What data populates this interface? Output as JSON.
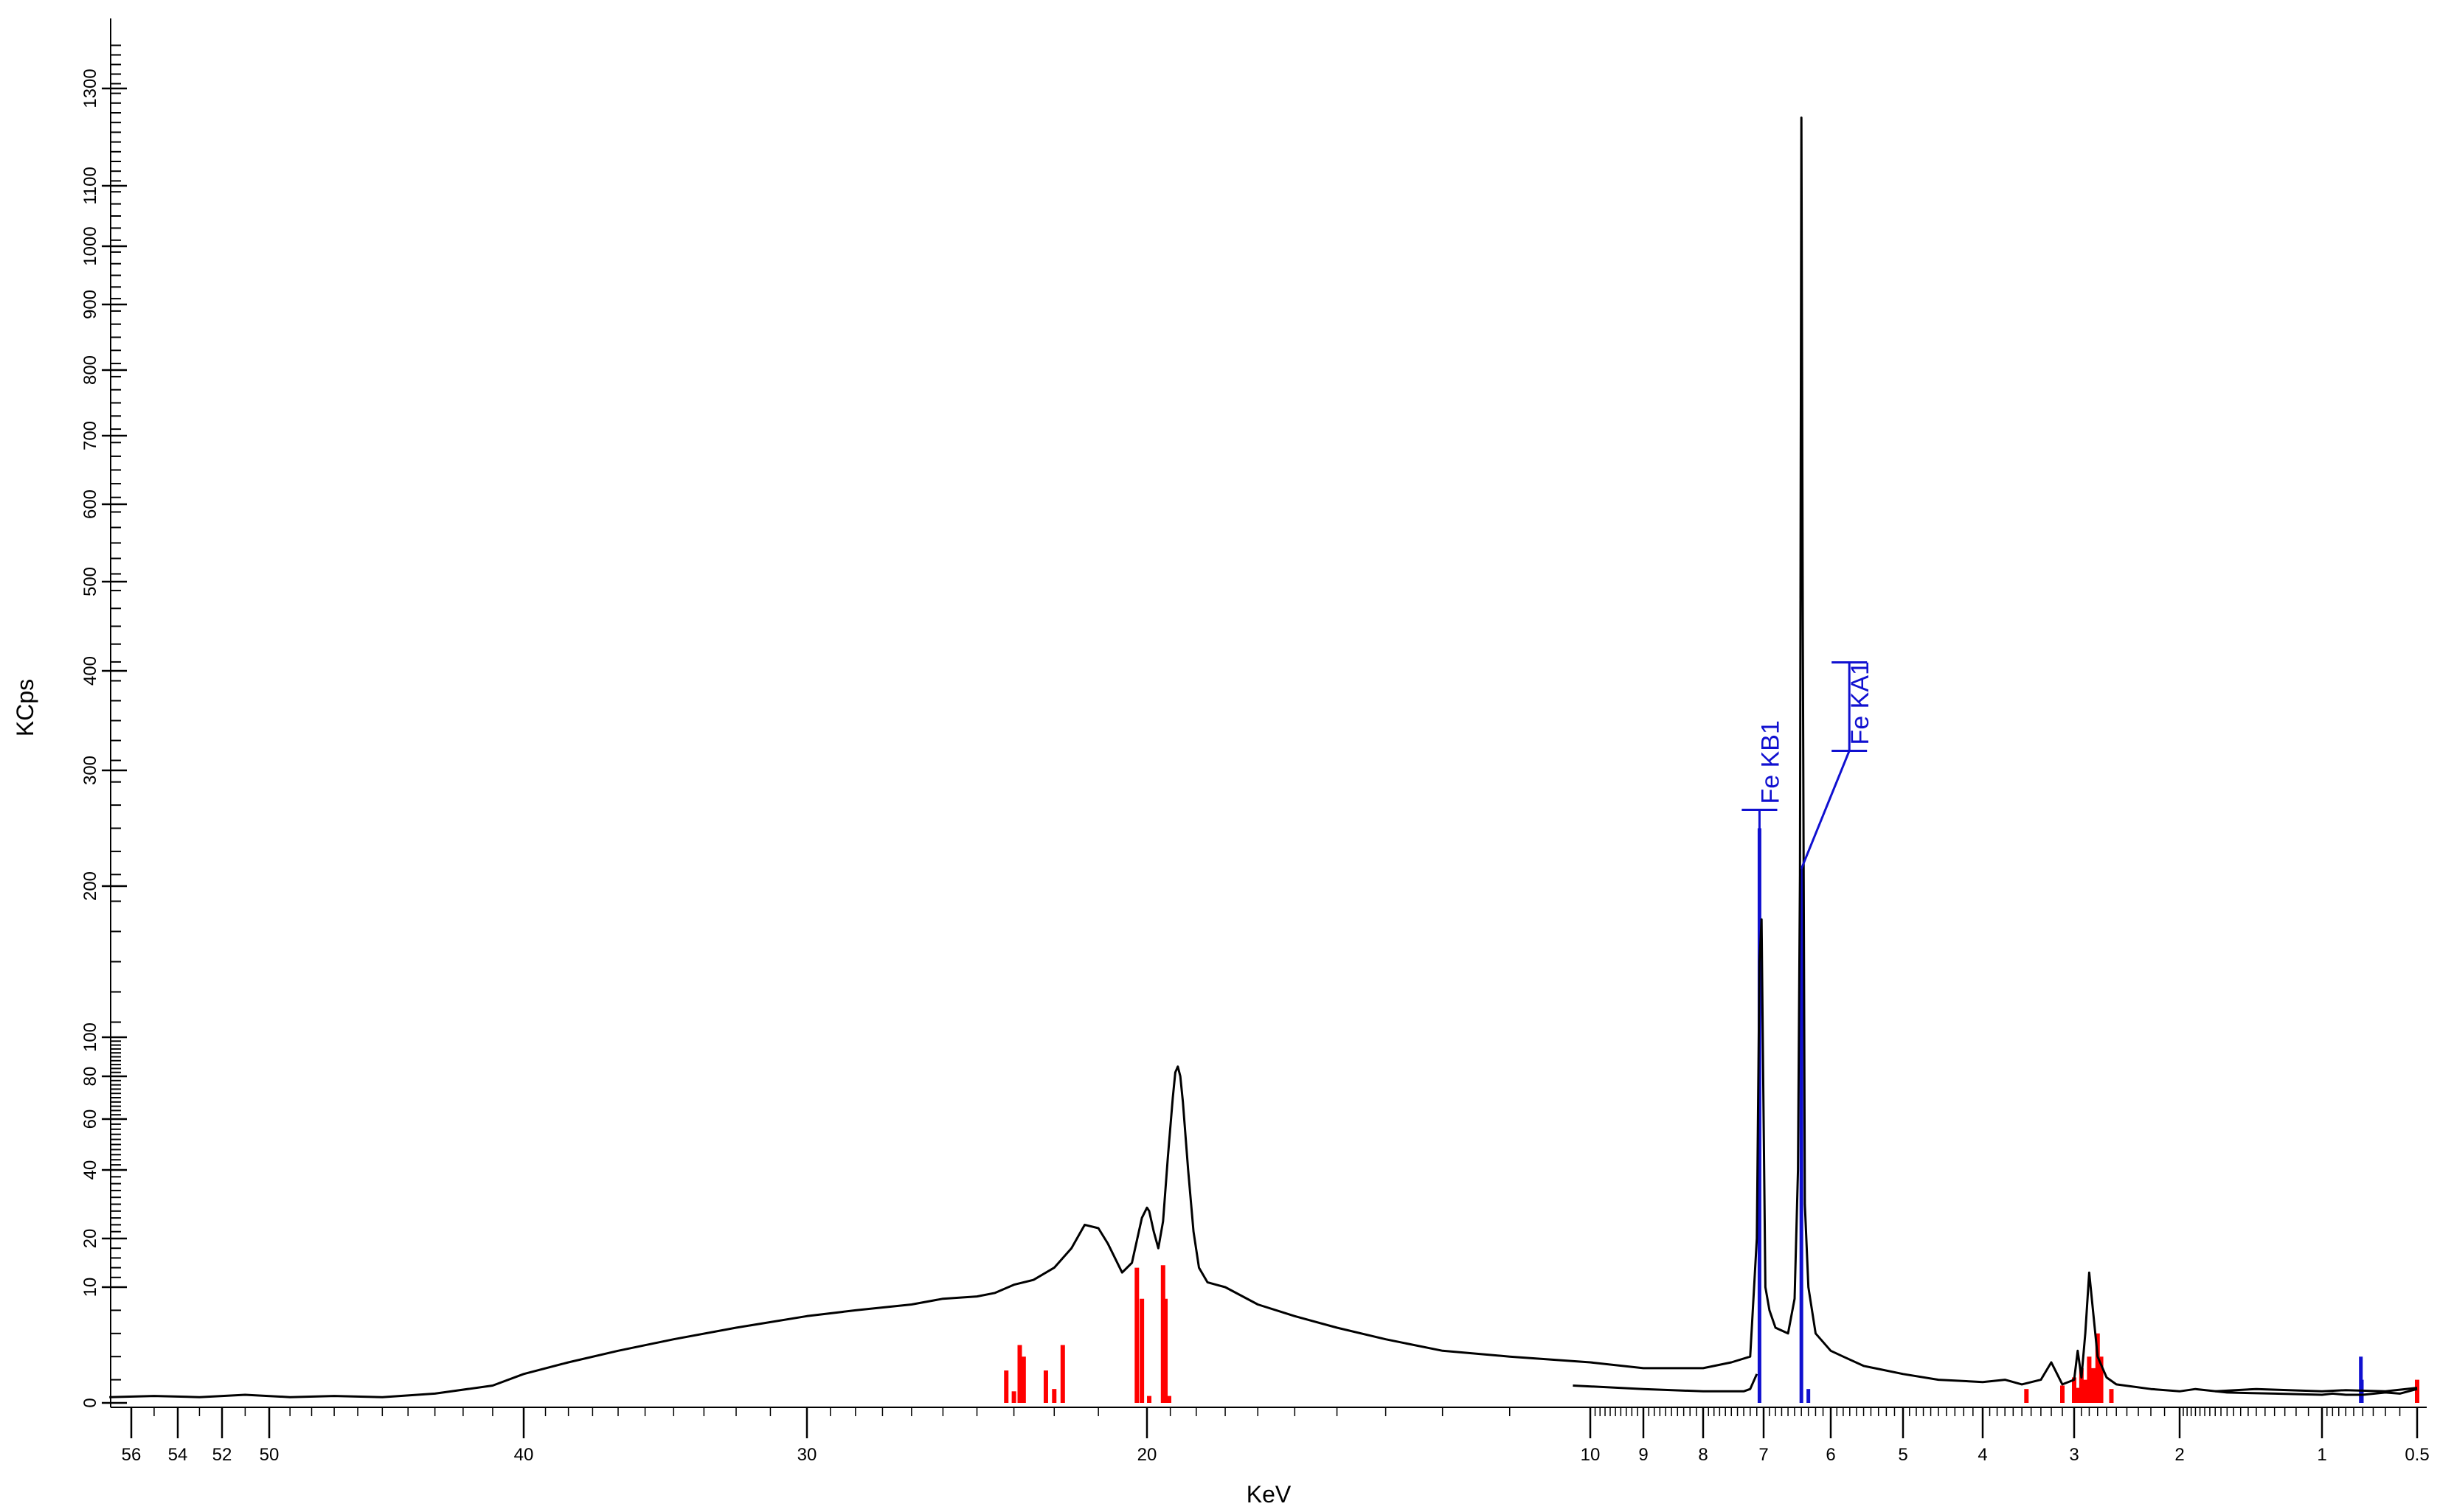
{
  "chart_data": {
    "type": "line",
    "title": "",
    "xlabel": "KeV",
    "ylabel": "KCps",
    "x_scale": "reciprocal",
    "y_scale": "nonlinear",
    "xlim": [
      57,
      0.5
    ],
    "x_ticks": [
      {
        "value": 56,
        "label": "56"
      },
      {
        "value": 54,
        "label": "54"
      },
      {
        "value": 52,
        "label": "52"
      },
      {
        "value": 50,
        "label": "50"
      },
      {
        "value": 40,
        "label": "40"
      },
      {
        "value": 30,
        "label": "30"
      },
      {
        "value": 20,
        "label": "20"
      },
      {
        "value": 10,
        "label": "10"
      },
      {
        "value": 9,
        "label": "9"
      },
      {
        "value": 8,
        "label": "8"
      },
      {
        "value": 7,
        "label": "7"
      },
      {
        "value": 6,
        "label": "6"
      },
      {
        "value": 5,
        "label": "5"
      },
      {
        "value": 4,
        "label": "4"
      },
      {
        "value": 3,
        "label": "3"
      },
      {
        "value": 2,
        "label": "2"
      },
      {
        "value": 1,
        "label": "1"
      },
      {
        "value": 0.5,
        "label": "0.5"
      }
    ],
    "y_ticks": [
      {
        "value": 0,
        "label": "0"
      },
      {
        "value": 10,
        "label": "10"
      },
      {
        "value": 20,
        "label": "20"
      },
      {
        "value": 40,
        "label": "40"
      },
      {
        "value": 60,
        "label": "60"
      },
      {
        "value": 80,
        "label": "80"
      },
      {
        "value": 100,
        "label": "100"
      },
      {
        "value": 200,
        "label": "200"
      },
      {
        "value": 300,
        "label": "300"
      },
      {
        "value": 400,
        "label": "400"
      },
      {
        "value": 500,
        "label": "500"
      },
      {
        "value": 600,
        "label": "600"
      },
      {
        "value": 700,
        "label": "700"
      },
      {
        "value": 800,
        "label": "800"
      },
      {
        "value": 900,
        "label": "900"
      },
      {
        "value": 1000,
        "label": "1000"
      },
      {
        "value": 1100,
        "label": "1100"
      },
      {
        "value": 1300,
        "label": "1300"
      }
    ],
    "ylim": [
      0,
      1400
    ],
    "grid": false,
    "legend": "none",
    "colors": {
      "spectrum": "#000000",
      "fe_lines": "#1010d0",
      "other_lines": "#ff0000"
    },
    "series": [
      {
        "role": "spectrum",
        "x": [
          57,
          55,
          53,
          51,
          49,
          47,
          45,
          43,
          41,
          40,
          38,
          36,
          34,
          32,
          30,
          28,
          26,
          25,
          24,
          23.5,
          23,
          22.5,
          22,
          21.6,
          21.3,
          21,
          20.8,
          20.5,
          20.3,
          20.1,
          20,
          19.9,
          19.7,
          19.5,
          19.3,
          19.1,
          18.9,
          18.8,
          18.7,
          18.6,
          18.5,
          18.3,
          18.1,
          17.9,
          17.6,
          17.3,
          17,
          16,
          15,
          14,
          13,
          12,
          11,
          10,
          9,
          8,
          7.5,
          7.2,
          7.1,
          7.06,
          7.03,
          7.0,
          6.97,
          6.9,
          6.8,
          6.6,
          6.5,
          6.45,
          6.42,
          6.4,
          6.38,
          6.35,
          6.3,
          6.2,
          6.0,
          5.8,
          5.5,
          5,
          4.5,
          4,
          3.7,
          3.5,
          3.3,
          3.2,
          3.1,
          3.0,
          2.95,
          2.9,
          2.85,
          2.8,
          2.7,
          2.6,
          2.5,
          2.2,
          2,
          1.8,
          1.5,
          1.2,
          1,
          0.9,
          0.8,
          0.7,
          0.6,
          0.55,
          0.5
        ],
        "y": [
          0.5,
          0.6,
          0.5,
          0.7,
          0.5,
          0.6,
          0.5,
          0.8,
          1.5,
          2.5,
          3.5,
          4.5,
          5.5,
          6.5,
          7.5,
          8,
          8.5,
          9,
          9.2,
          9.5,
          10.5,
          11.5,
          14,
          18,
          24,
          23,
          19,
          13,
          15,
          26,
          29,
          28,
          22,
          18,
          25,
          45,
          70,
          82,
          85,
          80,
          68,
          40,
          22,
          14,
          11,
          10.5,
          10,
          8.5,
          7.5,
          6.5,
          5.5,
          4.5,
          4,
          3.5,
          3,
          3,
          3.5,
          4,
          20,
          150,
          178,
          60,
          10,
          8,
          6.5,
          6,
          9,
          40,
          210,
          1240,
          450,
          30,
          10,
          6,
          4.5,
          4,
          3.2,
          2.5,
          2,
          1.8,
          2,
          1.6,
          2,
          3.5,
          1.6,
          2,
          4.5,
          2.2,
          6,
          13,
          4,
          2.2,
          1.6,
          1.2,
          1,
          1.2,
          0.9,
          0.8,
          0.7,
          0.8,
          0.7,
          0.7,
          0.9,
          0.8,
          1.2
        ]
      },
      {
        "role": "baseline_segment",
        "x": [
          10.2,
          9,
          8,
          7.5,
          7.3,
          7.2,
          7.1
        ],
        "y": [
          1.5,
          1.2,
          1.0,
          1.0,
          1.0,
          1.2,
          2.5
        ]
      },
      {
        "role": "baseline_segment",
        "x": [
          1.6,
          1.3,
          1.0,
          0.8,
          0.6,
          0.5
        ],
        "y": [
          1.0,
          1.2,
          1.0,
          1.1,
          1.0,
          1.3
        ]
      }
    ],
    "fe_lines": [
      {
        "x": 7.06,
        "y": 250
      },
      {
        "x": 6.4,
        "y": 215
      },
      {
        "x": 6.3,
        "y": 1.2
      },
      {
        "x": 0.71,
        "y": 4
      },
      {
        "x": 0.705,
        "y": 2
      }
    ],
    "other_lines": [
      {
        "x": 23.2,
        "y": 2.8
      },
      {
        "x": 23.0,
        "y": 1.0
      },
      {
        "x": 22.85,
        "y": 5.0
      },
      {
        "x": 22.75,
        "y": 4.0
      },
      {
        "x": 22.2,
        "y": 2.8
      },
      {
        "x": 22.0,
        "y": 1.2
      },
      {
        "x": 21.8,
        "y": 5.0
      },
      {
        "x": 20.2,
        "y": 14.0
      },
      {
        "x": 20.1,
        "y": 9.0
      },
      {
        "x": 19.9,
        "y": 0.6
      },
      {
        "x": 19.3,
        "y": 14.5
      },
      {
        "x": 19.2,
        "y": 9.0
      },
      {
        "x": 19.05,
        "y": 0.6
      },
      {
        "x": 3.45,
        "y": 1.2
      },
      {
        "x": 3.1,
        "y": 1.5
      },
      {
        "x": 3.0,
        "y": 2.2
      },
      {
        "x": 2.95,
        "y": 1.3
      },
      {
        "x": 2.9,
        "y": 3.0
      },
      {
        "x": 2.85,
        "y": 2.0
      },
      {
        "x": 2.8,
        "y": 4.0
      },
      {
        "x": 2.75,
        "y": 3.0
      },
      {
        "x": 2.7,
        "y": 6.0
      },
      {
        "x": 2.66,
        "y": 4.0
      },
      {
        "x": 2.55,
        "y": 1.2
      },
      {
        "x": 0.5,
        "y": 2.0
      }
    ],
    "annotations": [
      {
        "text": "Fe KB1",
        "x": 7.06,
        "y": 250,
        "color": "#1010d0"
      },
      {
        "text": "Fe KA1",
        "x": 6.4,
        "y": 215,
        "color": "#1010d0"
      }
    ]
  }
}
